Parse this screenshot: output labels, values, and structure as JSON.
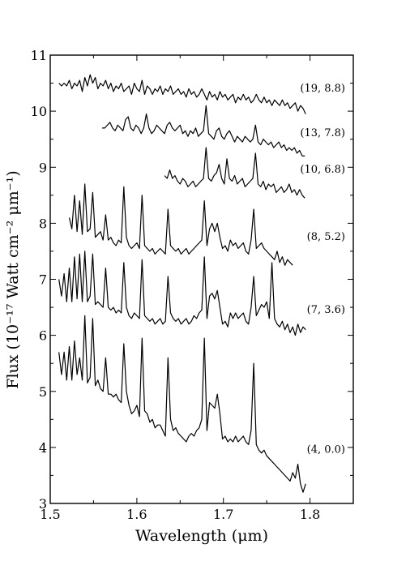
{
  "chart_data": {
    "type": "line",
    "title": "",
    "xlabel": "Wavelength (μm)",
    "ylabel": "Flux (10⁻¹⁷ Watt cm⁻² μm⁻¹)",
    "xlim": [
      1.5,
      1.85
    ],
    "ylim": [
      3,
      11
    ],
    "grid": false,
    "xticks": [
      1.5,
      1.6,
      1.7,
      1.8
    ],
    "xtick_labels": [
      "1.5",
      "1.6",
      "1.7",
      "1.8"
    ],
    "yticks": [
      3,
      4,
      5,
      6,
      7,
      8,
      9,
      10,
      11
    ],
    "ytick_labels": [
      "3",
      "4",
      "5",
      "6",
      "7",
      "8",
      "9",
      "10",
      "11"
    ],
    "line_color": "#000000",
    "series": [
      {
        "name": "(4, 0.0)",
        "x": [
          1.51,
          1.513,
          1.516,
          1.519,
          1.522,
          1.525,
          1.528,
          1.531,
          1.534,
          1.537,
          1.54,
          1.543,
          1.546,
          1.549,
          1.552,
          1.555,
          1.558,
          1.561,
          1.564,
          1.567,
          1.57,
          1.573,
          1.576,
          1.579,
          1.582,
          1.585,
          1.588,
          1.591,
          1.594,
          1.597,
          1.6,
          1.603,
          1.606,
          1.609,
          1.612,
          1.615,
          1.618,
          1.621,
          1.624,
          1.627,
          1.63,
          1.633,
          1.636,
          1.639,
          1.642,
          1.645,
          1.648,
          1.651,
          1.654,
          1.657,
          1.66,
          1.663,
          1.666,
          1.669,
          1.672,
          1.675,
          1.678,
          1.681,
          1.684,
          1.687,
          1.69,
          1.693,
          1.696,
          1.699,
          1.702,
          1.705,
          1.708,
          1.711,
          1.714,
          1.717,
          1.72,
          1.723,
          1.726,
          1.729,
          1.732,
          1.735,
          1.738,
          1.741,
          1.744,
          1.747,
          1.75,
          1.753,
          1.756,
          1.759,
          1.762,
          1.765,
          1.768,
          1.771,
          1.774,
          1.777,
          1.78,
          1.783,
          1.786,
          1.789,
          1.792,
          1.795
        ],
        "y": [
          5.7,
          5.3,
          5.7,
          5.2,
          5.8,
          5.2,
          5.9,
          5.3,
          5.6,
          5.2,
          6.35,
          5.15,
          5.25,
          6.3,
          5.1,
          5.2,
          5.05,
          5.0,
          5.6,
          4.95,
          4.95,
          4.9,
          4.95,
          4.85,
          4.8,
          5.85,
          5.0,
          4.75,
          4.6,
          4.65,
          4.75,
          4.55,
          5.95,
          4.65,
          4.6,
          4.45,
          4.5,
          4.35,
          4.4,
          4.4,
          4.3,
          4.2,
          5.6,
          4.5,
          4.3,
          4.35,
          4.25,
          4.2,
          4.15,
          4.1,
          4.2,
          4.25,
          4.2,
          4.3,
          4.35,
          4.5,
          5.95,
          4.3,
          4.8,
          4.75,
          4.7,
          4.95,
          4.6,
          4.15,
          4.2,
          4.1,
          4.15,
          4.1,
          4.2,
          4.1,
          4.15,
          4.2,
          4.1,
          4.05,
          4.3,
          5.5,
          4.05,
          3.95,
          3.9,
          3.95,
          3.85,
          3.8,
          3.75,
          3.7,
          3.65,
          3.6,
          3.55,
          3.5,
          3.45,
          3.4,
          3.55,
          3.45,
          3.7,
          3.35,
          3.2,
          3.35
        ]
      },
      {
        "name": "(7, 3.6)",
        "x": [
          1.51,
          1.513,
          1.516,
          1.519,
          1.522,
          1.525,
          1.528,
          1.531,
          1.534,
          1.537,
          1.54,
          1.543,
          1.546,
          1.549,
          1.552,
          1.555,
          1.558,
          1.561,
          1.564,
          1.567,
          1.57,
          1.573,
          1.576,
          1.579,
          1.582,
          1.585,
          1.588,
          1.591,
          1.594,
          1.597,
          1.6,
          1.603,
          1.606,
          1.609,
          1.612,
          1.615,
          1.618,
          1.621,
          1.624,
          1.627,
          1.63,
          1.633,
          1.636,
          1.639,
          1.642,
          1.645,
          1.648,
          1.651,
          1.654,
          1.657,
          1.66,
          1.663,
          1.666,
          1.669,
          1.672,
          1.675,
          1.678,
          1.681,
          1.684,
          1.687,
          1.69,
          1.693,
          1.696,
          1.699,
          1.702,
          1.705,
          1.708,
          1.711,
          1.714,
          1.717,
          1.72,
          1.723,
          1.726,
          1.729,
          1.732,
          1.735,
          1.738,
          1.741,
          1.744,
          1.747,
          1.75,
          1.753,
          1.756,
          1.759,
          1.762,
          1.765,
          1.768,
          1.771,
          1.774,
          1.777,
          1.78,
          1.783,
          1.786,
          1.789,
          1.792,
          1.795
        ],
        "y": [
          7.0,
          6.7,
          7.1,
          6.6,
          7.2,
          6.6,
          7.4,
          6.65,
          7.45,
          6.6,
          7.5,
          6.6,
          6.7,
          7.45,
          6.55,
          6.6,
          6.55,
          6.5,
          7.2,
          6.5,
          6.45,
          6.5,
          6.4,
          6.45,
          6.4,
          7.3,
          6.5,
          6.35,
          6.3,
          6.4,
          6.35,
          6.3,
          7.35,
          6.35,
          6.3,
          6.25,
          6.3,
          6.2,
          6.25,
          6.3,
          6.2,
          6.25,
          7.05,
          6.4,
          6.3,
          6.25,
          6.3,
          6.2,
          6.25,
          6.3,
          6.2,
          6.25,
          6.35,
          6.3,
          6.4,
          6.45,
          7.4,
          6.3,
          6.7,
          6.75,
          6.65,
          6.8,
          6.5,
          6.2,
          6.25,
          6.15,
          6.4,
          6.3,
          6.4,
          6.3,
          6.35,
          6.4,
          6.25,
          6.2,
          6.5,
          7.05,
          6.35,
          6.45,
          6.55,
          6.5,
          6.6,
          6.3,
          7.3,
          6.3,
          6.2,
          6.15,
          6.25,
          6.1,
          6.2,
          6.05,
          6.15,
          6.0,
          6.2,
          6.05,
          6.15,
          6.1
        ]
      },
      {
        "name": "(8, 5.2)",
        "x": [
          1.522,
          1.525,
          1.528,
          1.531,
          1.534,
          1.537,
          1.54,
          1.543,
          1.546,
          1.549,
          1.552,
          1.555,
          1.558,
          1.561,
          1.564,
          1.567,
          1.57,
          1.573,
          1.576,
          1.579,
          1.582,
          1.585,
          1.588,
          1.591,
          1.594,
          1.597,
          1.6,
          1.603,
          1.606,
          1.609,
          1.612,
          1.615,
          1.618,
          1.621,
          1.624,
          1.627,
          1.63,
          1.633,
          1.636,
          1.639,
          1.642,
          1.645,
          1.648,
          1.651,
          1.654,
          1.657,
          1.66,
          1.663,
          1.666,
          1.669,
          1.672,
          1.675,
          1.678,
          1.681,
          1.684,
          1.687,
          1.69,
          1.693,
          1.696,
          1.699,
          1.702,
          1.705,
          1.708,
          1.711,
          1.714,
          1.717,
          1.72,
          1.723,
          1.726,
          1.729,
          1.732,
          1.735,
          1.738,
          1.741,
          1.744,
          1.747,
          1.75,
          1.753,
          1.756,
          1.759,
          1.762,
          1.765,
          1.768,
          1.771,
          1.774,
          1.777,
          1.78
        ],
        "y": [
          8.1,
          7.9,
          8.5,
          7.85,
          8.4,
          7.8,
          8.7,
          7.85,
          7.9,
          8.55,
          7.75,
          7.8,
          7.85,
          7.7,
          8.15,
          7.7,
          7.75,
          7.65,
          7.6,
          7.7,
          7.65,
          8.65,
          7.75,
          7.6,
          7.55,
          7.6,
          7.65,
          7.55,
          8.5,
          7.6,
          7.55,
          7.5,
          7.55,
          7.45,
          7.5,
          7.55,
          7.5,
          7.45,
          8.25,
          7.6,
          7.55,
          7.5,
          7.55,
          7.45,
          7.5,
          7.55,
          7.45,
          7.5,
          7.55,
          7.6,
          7.65,
          7.7,
          8.4,
          7.6,
          7.9,
          8.0,
          7.85,
          8.0,
          7.75,
          7.55,
          7.6,
          7.5,
          7.7,
          7.6,
          7.65,
          7.55,
          7.6,
          7.65,
          7.5,
          7.45,
          7.7,
          8.25,
          7.55,
          7.6,
          7.65,
          7.55,
          7.5,
          7.45,
          7.4,
          7.35,
          7.5,
          7.3,
          7.4,
          7.25,
          7.35,
          7.3,
          7.25
        ]
      },
      {
        "name": "(10, 6.8)",
        "x": [
          1.632,
          1.635,
          1.638,
          1.641,
          1.644,
          1.647,
          1.65,
          1.653,
          1.656,
          1.659,
          1.662,
          1.665,
          1.668,
          1.671,
          1.674,
          1.677,
          1.68,
          1.683,
          1.686,
          1.689,
          1.692,
          1.695,
          1.698,
          1.701,
          1.704,
          1.707,
          1.71,
          1.713,
          1.716,
          1.719,
          1.722,
          1.725,
          1.728,
          1.731,
          1.734,
          1.737,
          1.74,
          1.743,
          1.746,
          1.749,
          1.752,
          1.755,
          1.758,
          1.761,
          1.764,
          1.767,
          1.77,
          1.773,
          1.776,
          1.779,
          1.782,
          1.785,
          1.788,
          1.791,
          1.794
        ],
        "y": [
          8.85,
          8.8,
          8.95,
          8.8,
          8.85,
          8.75,
          8.7,
          8.8,
          8.75,
          8.65,
          8.7,
          8.75,
          8.65,
          8.7,
          8.75,
          8.8,
          9.35,
          8.8,
          8.75,
          8.85,
          8.9,
          9.05,
          8.8,
          8.7,
          9.15,
          8.8,
          8.75,
          8.85,
          8.7,
          8.75,
          8.8,
          8.65,
          8.7,
          8.75,
          8.8,
          9.25,
          8.7,
          8.65,
          8.75,
          8.6,
          8.7,
          8.65,
          8.7,
          8.55,
          8.6,
          8.65,
          8.55,
          8.6,
          8.7,
          8.55,
          8.6,
          8.5,
          8.6,
          8.5,
          8.45
        ]
      },
      {
        "name": "(13, 7.8)",
        "x": [
          1.56,
          1.563,
          1.566,
          1.569,
          1.572,
          1.575,
          1.578,
          1.581,
          1.584,
          1.587,
          1.59,
          1.593,
          1.596,
          1.599,
          1.602,
          1.605,
          1.608,
          1.611,
          1.614,
          1.617,
          1.62,
          1.623,
          1.626,
          1.629,
          1.632,
          1.635,
          1.638,
          1.641,
          1.644,
          1.647,
          1.65,
          1.653,
          1.656,
          1.659,
          1.662,
          1.665,
          1.668,
          1.671,
          1.674,
          1.677,
          1.68,
          1.683,
          1.686,
          1.689,
          1.692,
          1.695,
          1.698,
          1.701,
          1.704,
          1.707,
          1.71,
          1.713,
          1.716,
          1.719,
          1.722,
          1.725,
          1.728,
          1.731,
          1.734,
          1.737,
          1.74,
          1.743,
          1.746,
          1.749,
          1.752,
          1.755,
          1.758,
          1.761,
          1.764,
          1.767,
          1.77,
          1.773,
          1.776,
          1.779,
          1.782,
          1.785,
          1.788,
          1.791,
          1.794
        ],
        "y": [
          9.7,
          9.7,
          9.75,
          9.8,
          9.7,
          9.65,
          9.75,
          9.7,
          9.65,
          9.85,
          9.9,
          9.7,
          9.65,
          9.75,
          9.7,
          9.6,
          9.7,
          9.95,
          9.7,
          9.6,
          9.65,
          9.75,
          9.7,
          9.65,
          9.6,
          9.75,
          9.8,
          9.7,
          9.65,
          9.7,
          9.75,
          9.6,
          9.65,
          9.55,
          9.65,
          9.6,
          9.7,
          9.55,
          9.6,
          9.65,
          10.1,
          9.6,
          9.55,
          9.5,
          9.65,
          9.7,
          9.55,
          9.5,
          9.6,
          9.65,
          9.55,
          9.45,
          9.55,
          9.5,
          9.45,
          9.55,
          9.5,
          9.45,
          9.5,
          9.75,
          9.45,
          9.4,
          9.5,
          9.45,
          9.4,
          9.45,
          9.35,
          9.4,
          9.45,
          9.35,
          9.4,
          9.3,
          9.35,
          9.3,
          9.35,
          9.25,
          9.3,
          9.2,
          9.2
        ]
      },
      {
        "name": "(19, 8.8)",
        "x": [
          1.51,
          1.513,
          1.516,
          1.519,
          1.522,
          1.525,
          1.528,
          1.531,
          1.534,
          1.537,
          1.54,
          1.543,
          1.546,
          1.549,
          1.552,
          1.555,
          1.558,
          1.561,
          1.564,
          1.567,
          1.57,
          1.573,
          1.576,
          1.579,
          1.582,
          1.585,
          1.588,
          1.591,
          1.594,
          1.597,
          1.6,
          1.603,
          1.606,
          1.609,
          1.612,
          1.615,
          1.618,
          1.621,
          1.624,
          1.627,
          1.63,
          1.633,
          1.636,
          1.639,
          1.642,
          1.645,
          1.648,
          1.651,
          1.654,
          1.657,
          1.66,
          1.663,
          1.666,
          1.669,
          1.672,
          1.675,
          1.678,
          1.681,
          1.684,
          1.687,
          1.69,
          1.693,
          1.696,
          1.699,
          1.702,
          1.705,
          1.708,
          1.711,
          1.714,
          1.717,
          1.72,
          1.723,
          1.726,
          1.729,
          1.732,
          1.735,
          1.738,
          1.741,
          1.744,
          1.747,
          1.75,
          1.753,
          1.756,
          1.759,
          1.762,
          1.765,
          1.768,
          1.771,
          1.774,
          1.777,
          1.78,
          1.783,
          1.786,
          1.789,
          1.792,
          1.795
        ],
        "y": [
          10.5,
          10.45,
          10.5,
          10.45,
          10.55,
          10.4,
          10.5,
          10.45,
          10.55,
          10.35,
          10.6,
          10.45,
          10.65,
          10.5,
          10.6,
          10.4,
          10.5,
          10.45,
          10.55,
          10.4,
          10.5,
          10.35,
          10.45,
          10.4,
          10.5,
          10.35,
          10.4,
          10.45,
          10.3,
          10.5,
          10.4,
          10.35,
          10.55,
          10.3,
          10.45,
          10.4,
          10.3,
          10.4,
          10.35,
          10.45,
          10.3,
          10.4,
          10.35,
          10.45,
          10.3,
          10.35,
          10.4,
          10.3,
          10.35,
          10.25,
          10.4,
          10.3,
          10.35,
          10.25,
          10.3,
          10.4,
          10.3,
          10.2,
          10.35,
          10.25,
          10.3,
          10.2,
          10.35,
          10.25,
          10.3,
          10.2,
          10.25,
          10.3,
          10.15,
          10.25,
          10.2,
          10.3,
          10.2,
          10.25,
          10.15,
          10.2,
          10.3,
          10.2,
          10.15,
          10.25,
          10.15,
          10.2,
          10.1,
          10.2,
          10.15,
          10.1,
          10.2,
          10.1,
          10.15,
          10.05,
          10.1,
          10.15,
          10.0,
          10.1,
          10.05,
          9.95
        ]
      }
    ]
  }
}
